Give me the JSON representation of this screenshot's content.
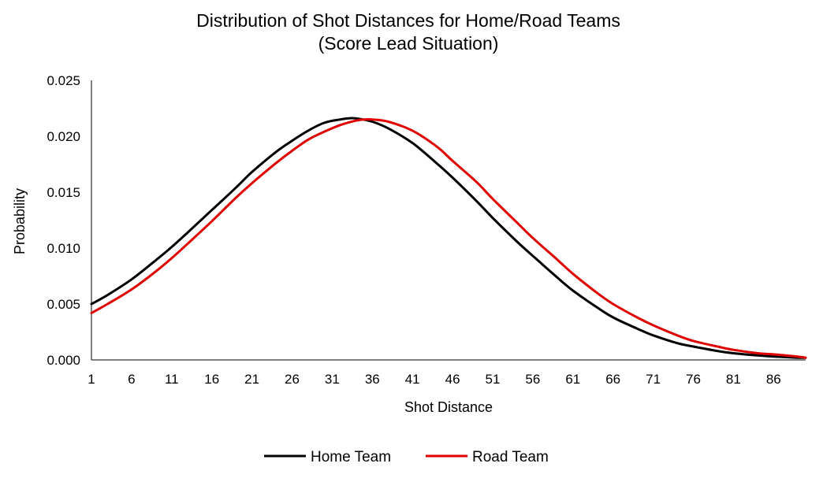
{
  "chart_data": {
    "type": "line",
    "title": "Distribution of Shot Distances for Home/Road Teams",
    "subtitle": "(Score Lead Situation)",
    "xlabel": "Shot Distance",
    "ylabel": "Probability",
    "x_tick_labels": [
      "1",
      "6",
      "11",
      "16",
      "21",
      "26",
      "31",
      "36",
      "41",
      "46",
      "51",
      "56",
      "61",
      "66",
      "71",
      "76",
      "81",
      "86"
    ],
    "y_tick_labels": [
      "0.000",
      "0.005",
      "0.010",
      "0.015",
      "0.020",
      "0.025"
    ],
    "xlim": [
      1,
      90
    ],
    "ylim": [
      0,
      0.025
    ],
    "grid": false,
    "legend_position": "bottom",
    "series": [
      {
        "name": "Home Team",
        "color": "#000000",
        "x": [
          1,
          3,
          6,
          9,
          11,
          13,
          16,
          19,
          21,
          24,
          26,
          28,
          30,
          32,
          33,
          34,
          36,
          38,
          41,
          44,
          46,
          49,
          51,
          54,
          56,
          59,
          61,
          64,
          66,
          69,
          71,
          74,
          76,
          79,
          81,
          84,
          86,
          89,
          90
        ],
        "values": [
          0.005,
          0.0058,
          0.0072,
          0.0089,
          0.0101,
          0.0114,
          0.0134,
          0.0154,
          0.0168,
          0.0186,
          0.0196,
          0.0205,
          0.0212,
          0.0215,
          0.0216,
          0.0216,
          0.0213,
          0.0207,
          0.0194,
          0.0176,
          0.0163,
          0.0142,
          0.0127,
          0.0106,
          0.0093,
          0.0074,
          0.0062,
          0.0047,
          0.0038,
          0.0028,
          0.0022,
          0.0015,
          0.0012,
          0.0008,
          0.0006,
          0.0004,
          0.0003,
          0.0002,
          0.0002
        ]
      },
      {
        "name": "Road Team",
        "color": "#E00000",
        "x": [
          1,
          3,
          6,
          9,
          11,
          13,
          16,
          19,
          21,
          24,
          26,
          28,
          30,
          32,
          34,
          35,
          36,
          38,
          41,
          44,
          46,
          49,
          51,
          54,
          56,
          59,
          61,
          64,
          66,
          69,
          71,
          74,
          76,
          79,
          81,
          84,
          86,
          89,
          90
        ],
        "values": [
          0.0042,
          0.005,
          0.0063,
          0.0079,
          0.0091,
          0.0104,
          0.0124,
          0.0145,
          0.0158,
          0.0176,
          0.0187,
          0.0197,
          0.0204,
          0.021,
          0.0214,
          0.0215,
          0.0215,
          0.0213,
          0.0205,
          0.0191,
          0.0178,
          0.0159,
          0.0144,
          0.0123,
          0.0109,
          0.009,
          0.0077,
          0.006,
          0.005,
          0.0038,
          0.0031,
          0.0022,
          0.0017,
          0.0012,
          0.0009,
          0.0006,
          0.0005,
          0.0003,
          0.0002
        ]
      }
    ]
  }
}
